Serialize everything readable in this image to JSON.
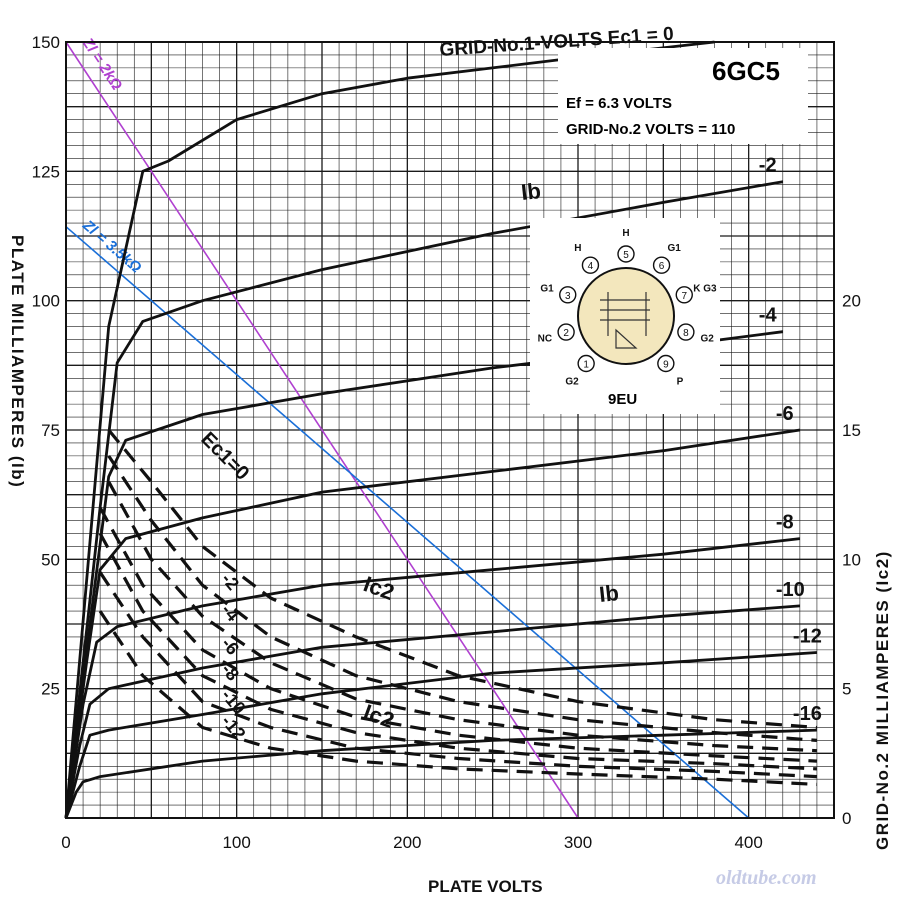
{
  "chart_data": {
    "type": "line",
    "title": "6GC5",
    "subtitle_lines": [
      "Ef = 6.3 VOLTS",
      "GRID-No.2 VOLTS = 110"
    ],
    "xlabel": "PLATE VOLTS",
    "ylabel": "PLATE MILLIAMPERES (Ib)",
    "y2label": "GRID-No.2 MILLIAMPERES (Ic2)",
    "xlim": [
      0,
      450
    ],
    "ylim": [
      0,
      150
    ],
    "y2lim": [
      0,
      30
    ],
    "x_ticks": [
      0,
      100,
      200,
      300,
      400
    ],
    "y_ticks": [
      25,
      50,
      75,
      100,
      125,
      150
    ],
    "y2_ticks": [
      0,
      5,
      10,
      15,
      20
    ],
    "grid": true,
    "header_label": "GRID-No.1-VOLTS Ec1 = 0",
    "ib_label": "Ib",
    "ic2_label": "Ic2",
    "ec1_label": "Ec1=0",
    "watermark": "oldtube.com",
    "plate_curves": [
      {
        "ec1": "0",
        "label": "",
        "points": [
          [
            0,
            0
          ],
          [
            25,
            95
          ],
          [
            45,
            125
          ],
          [
            60,
            127
          ],
          [
            100,
            135
          ],
          [
            150,
            140
          ],
          [
            200,
            143
          ],
          [
            300,
            147
          ],
          [
            380,
            150
          ]
        ]
      },
      {
        "ec1": "-2",
        "label": "-2",
        "points": [
          [
            0,
            0
          ],
          [
            20,
            60
          ],
          [
            30,
            88
          ],
          [
            45,
            96
          ],
          [
            80,
            100
          ],
          [
            150,
            106
          ],
          [
            250,
            113
          ],
          [
            350,
            119
          ],
          [
            420,
            123
          ]
        ]
      },
      {
        "ec1": "-4",
        "label": "-4",
        "points": [
          [
            0,
            0
          ],
          [
            15,
            40
          ],
          [
            25,
            66
          ],
          [
            35,
            73
          ],
          [
            80,
            78
          ],
          [
            150,
            82
          ],
          [
            250,
            87
          ],
          [
            350,
            91
          ],
          [
            420,
            94
          ]
        ]
      },
      {
        "ec1": "-6",
        "label": "-6",
        "points": [
          [
            0,
            0
          ],
          [
            12,
            30
          ],
          [
            20,
            48
          ],
          [
            35,
            54
          ],
          [
            80,
            58
          ],
          [
            150,
            63
          ],
          [
            250,
            67
          ],
          [
            350,
            71
          ],
          [
            430,
            75
          ]
        ]
      },
      {
        "ec1": "-8",
        "label": "-8",
        "points": [
          [
            0,
            0
          ],
          [
            10,
            22
          ],
          [
            18,
            34
          ],
          [
            30,
            37
          ],
          [
            80,
            41
          ],
          [
            150,
            45
          ],
          [
            250,
            48
          ],
          [
            350,
            51
          ],
          [
            430,
            54
          ]
        ]
      },
      {
        "ec1": "-10",
        "label": "-10",
        "points": [
          [
            0,
            0
          ],
          [
            8,
            14
          ],
          [
            14,
            22
          ],
          [
            25,
            25
          ],
          [
            80,
            29
          ],
          [
            150,
            33
          ],
          [
            250,
            36
          ],
          [
            350,
            39
          ],
          [
            430,
            41
          ]
        ]
      },
      {
        "ec1": "-12",
        "label": "-12",
        "points": [
          [
            0,
            0
          ],
          [
            8,
            10
          ],
          [
            14,
            16
          ],
          [
            25,
            17
          ],
          [
            80,
            20
          ],
          [
            150,
            24
          ],
          [
            250,
            28
          ],
          [
            350,
            30
          ],
          [
            440,
            32
          ]
        ]
      },
      {
        "ec1": "-16",
        "label": "-16",
        "points": [
          [
            0,
            0
          ],
          [
            6,
            5
          ],
          [
            10,
            7
          ],
          [
            20,
            8
          ],
          [
            80,
            11
          ],
          [
            150,
            13
          ],
          [
            250,
            15
          ],
          [
            350,
            16
          ],
          [
            440,
            17
          ]
        ]
      }
    ],
    "screen_curves": [
      {
        "ec1": "0",
        "label": "0",
        "points": [
          [
            25,
            15
          ],
          [
            50,
            13
          ],
          [
            80,
            10.5
          ],
          [
            120,
            8.5
          ],
          [
            170,
            7
          ],
          [
            230,
            5.5
          ],
          [
            300,
            4.5
          ],
          [
            380,
            3.8
          ],
          [
            440,
            3.5
          ]
        ]
      },
      {
        "ec1": "-2",
        "label": "-2",
        "points": [
          [
            25,
            14
          ],
          [
            50,
            11.5
          ],
          [
            80,
            9
          ],
          [
            120,
            7
          ],
          [
            170,
            5.5
          ],
          [
            230,
            4.5
          ],
          [
            300,
            3.8
          ],
          [
            380,
            3.3
          ],
          [
            440,
            3
          ]
        ]
      },
      {
        "ec1": "-4",
        "label": "-4",
        "points": [
          [
            25,
            13
          ],
          [
            50,
            10
          ],
          [
            80,
            7.8
          ],
          [
            120,
            6
          ],
          [
            170,
            4.6
          ],
          [
            230,
            3.8
          ],
          [
            300,
            3.2
          ],
          [
            380,
            2.8
          ],
          [
            440,
            2.6
          ]
        ]
      },
      {
        "ec1": "-6",
        "label": "-6",
        "points": [
          [
            20,
            12
          ],
          [
            45,
            9
          ],
          [
            80,
            6.5
          ],
          [
            120,
            5
          ],
          [
            170,
            3.9
          ],
          [
            230,
            3.2
          ],
          [
            300,
            2.7
          ],
          [
            380,
            2.4
          ],
          [
            440,
            2.2
          ]
        ]
      },
      {
        "ec1": "-8",
        "label": "-8",
        "points": [
          [
            20,
            11
          ],
          [
            45,
            8
          ],
          [
            80,
            5.5
          ],
          [
            120,
            4.2
          ],
          [
            170,
            3.3
          ],
          [
            230,
            2.7
          ],
          [
            300,
            2.3
          ],
          [
            380,
            2.1
          ],
          [
            440,
            1.9
          ]
        ]
      },
      {
        "ec1": "-10",
        "label": "-10",
        "points": [
          [
            20,
            9.5
          ],
          [
            45,
            7
          ],
          [
            80,
            4.5
          ],
          [
            120,
            3.5
          ],
          [
            170,
            2.7
          ],
          [
            230,
            2.3
          ],
          [
            300,
            2
          ],
          [
            380,
            1.8
          ],
          [
            440,
            1.6
          ]
        ]
      },
      {
        "ec1": "-12",
        "label": "-12",
        "points": [
          [
            20,
            8
          ],
          [
            45,
            5.5
          ],
          [
            80,
            3.5
          ],
          [
            120,
            2.7
          ],
          [
            170,
            2.2
          ],
          [
            230,
            1.9
          ],
          [
            300,
            1.7
          ],
          [
            380,
            1.5
          ],
          [
            440,
            1.3
          ]
        ]
      }
    ],
    "load_lines": [
      {
        "label": "Zl = 2kΩ",
        "color": "#b040d0",
        "points": [
          [
            0,
            150
          ],
          [
            300,
            0
          ]
        ]
      },
      {
        "label": "Zl = 3.5kΩ",
        "color": "#1a6fd8",
        "points": [
          [
            0,
            114.3
          ],
          [
            400,
            0
          ]
        ]
      }
    ],
    "socket": {
      "base": "9EU",
      "pins": [
        "1",
        "2",
        "3",
        "4",
        "5",
        "6",
        "7",
        "8",
        "9"
      ],
      "pin_labels": [
        "G2",
        "NC",
        "G1",
        "H",
        "H",
        "G1",
        "K G3",
        "G2",
        "P"
      ]
    }
  }
}
